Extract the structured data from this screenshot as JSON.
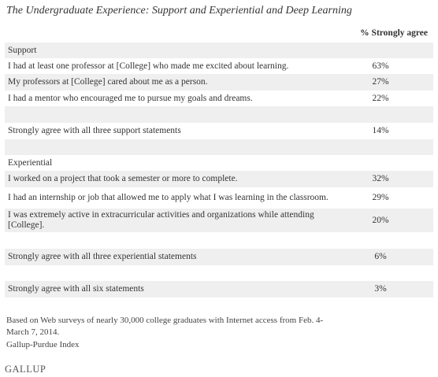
{
  "title": "The Undergraduate Experience: Support and Experiential and Deep Learning",
  "column_header": "% Strongly agree",
  "chart_data": {
    "type": "table",
    "columns": [
      "",
      "% Strongly agree"
    ],
    "rows": [
      {
        "kind": "section",
        "label": "Support",
        "value": ""
      },
      {
        "kind": "item",
        "label": "I had at least one professor at [College] who made me excited about learning.",
        "value": "63%"
      },
      {
        "kind": "item",
        "label": "My professors at [College] cared about me as a person.",
        "value": "27%"
      },
      {
        "kind": "item",
        "label": "I had a mentor who encouraged me to pursue my goals and dreams.",
        "value": "22%"
      },
      {
        "kind": "spacer",
        "label": "",
        "value": ""
      },
      {
        "kind": "item",
        "label": "Strongly agree with all three support statements",
        "value": "14%"
      },
      {
        "kind": "spacer",
        "label": "",
        "value": ""
      },
      {
        "kind": "section",
        "label": "Experiential",
        "value": ""
      },
      {
        "kind": "item",
        "label": "I worked on a project that took a semester or more to complete.",
        "value": "32%"
      },
      {
        "kind": "item",
        "label": "I had an internship or job that allowed me to apply what I was learning in the classroom.",
        "value": "29%"
      },
      {
        "kind": "item",
        "label": "I was extremely active in extracurricular activities and organizations while attending [College].",
        "value": "20%"
      },
      {
        "kind": "spacer",
        "label": "",
        "value": ""
      },
      {
        "kind": "item",
        "label": "Strongly agree with all three experiential statements",
        "value": "6%"
      },
      {
        "kind": "spacer",
        "label": "",
        "value": ""
      },
      {
        "kind": "item",
        "label": "Strongly agree with all six statements",
        "value": "3%"
      }
    ]
  },
  "footnote": "Based on Web surveys of nearly 30,000 college graduates with Internet access from Feb. 4-March 7, 2014.",
  "source": "Gallup-Purdue Index",
  "logo": "GALLUP"
}
